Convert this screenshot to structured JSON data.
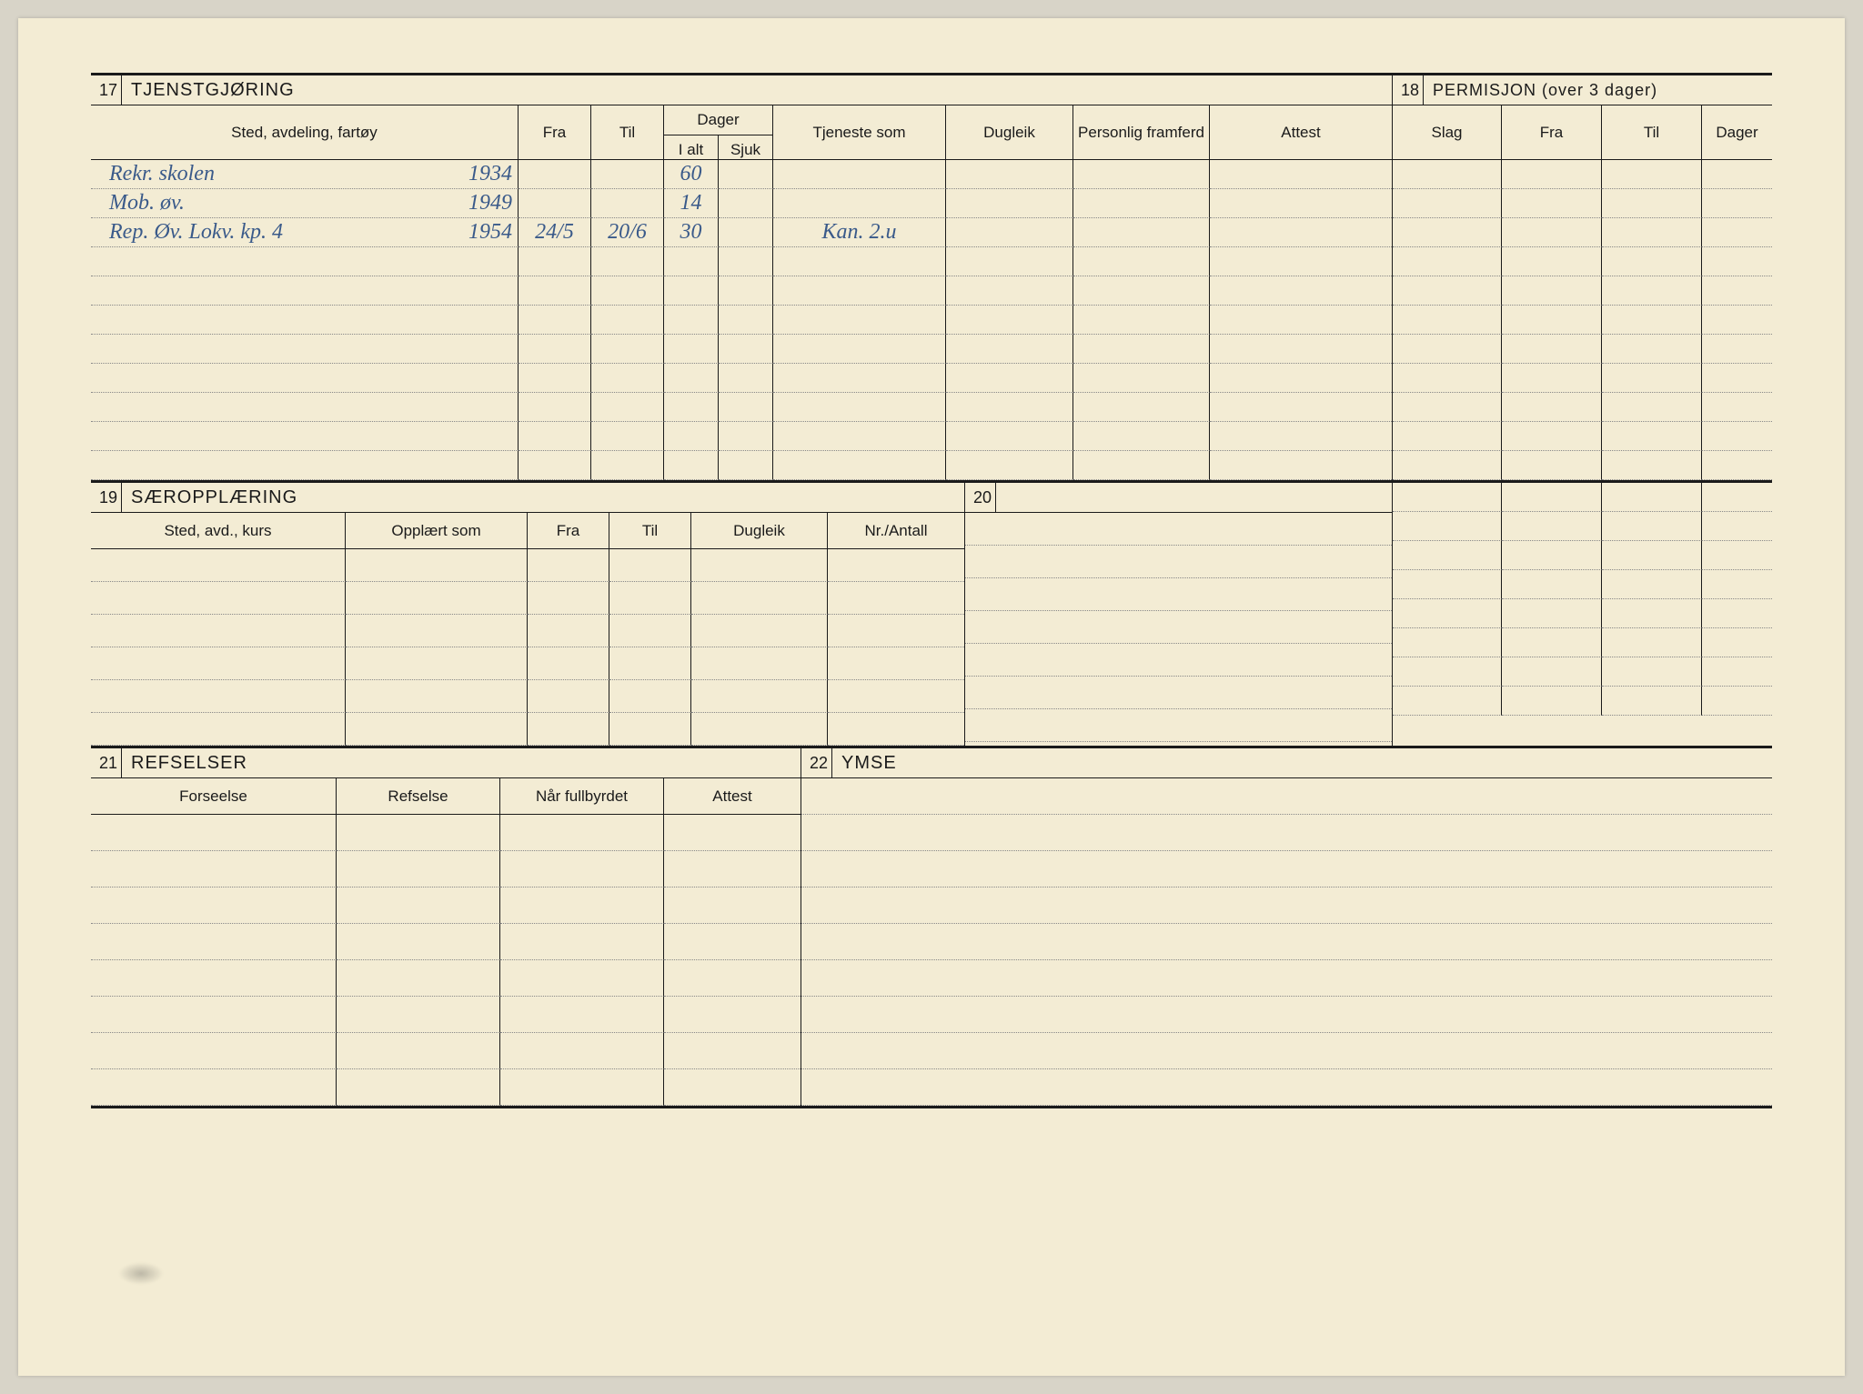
{
  "colors": {
    "card_bg": "#f3ecd4",
    "page_bg": "#d8d4c8",
    "ink": "#1a1a1a",
    "handwriting": "#3a5a8a",
    "dotted": "#888888"
  },
  "sec17": {
    "num": "17",
    "title": "TJENSTGJØRING",
    "columns": {
      "sted": "Sted, avdeling, fartøy",
      "fra": "Fra",
      "til": "Til",
      "dager": "Dager",
      "ialt": "I alt",
      "sjuk": "Sjuk",
      "tjeneste": "Tjeneste som",
      "dugleik": "Dugleik",
      "framferd": "Personlig framferd",
      "attest": "Attest"
    },
    "rows": [
      {
        "sted": "Rekr. skolen",
        "year": "1934",
        "fra": "",
        "til": "",
        "ialt": "60",
        "sjuk": "",
        "tjeneste": "",
        "dugleik": "",
        "framferd": "",
        "attest": ""
      },
      {
        "sted": "Mob. øv.",
        "year": "1949",
        "fra": "",
        "til": "",
        "ialt": "14",
        "sjuk": "",
        "tjeneste": "",
        "dugleik": "",
        "framferd": "",
        "attest": ""
      },
      {
        "sted": "Rep. Øv. Lokv. kp. 4",
        "year": "1954",
        "fra": "24/5",
        "til": "20/6",
        "ialt": "30",
        "sjuk": "",
        "tjeneste": "Kan. 2.u",
        "dugleik": "",
        "framferd": "",
        "attest": ""
      }
    ],
    "blank_rows": 8
  },
  "sec18": {
    "num": "18",
    "title": "PERMISJON (over 3 dager)",
    "columns": {
      "slag": "Slag",
      "fra": "Fra",
      "til": "Til",
      "dager": "Dager"
    },
    "blank_rows": 18
  },
  "sec19": {
    "num": "19",
    "title": "SÆROPPLÆRING",
    "columns": {
      "sted": "Sted, avd., kurs",
      "opplart": "Opplært som",
      "fra": "Fra",
      "til": "Til",
      "dugleik": "Dugleik",
      "nr": "Nr./Antall"
    },
    "blank_rows": 6
  },
  "sec20": {
    "num": "20",
    "title": "",
    "blank_rows": 7
  },
  "sec21": {
    "num": "21",
    "title": "REFSELSER",
    "columns": {
      "forseelse": "Forseelse",
      "refselse": "Refselse",
      "nar": "Når fullbyrdet",
      "attest": "Attest"
    },
    "blank_rows": 8
  },
  "sec22": {
    "num": "22",
    "title": "YMSE",
    "blank_rows": 9
  }
}
